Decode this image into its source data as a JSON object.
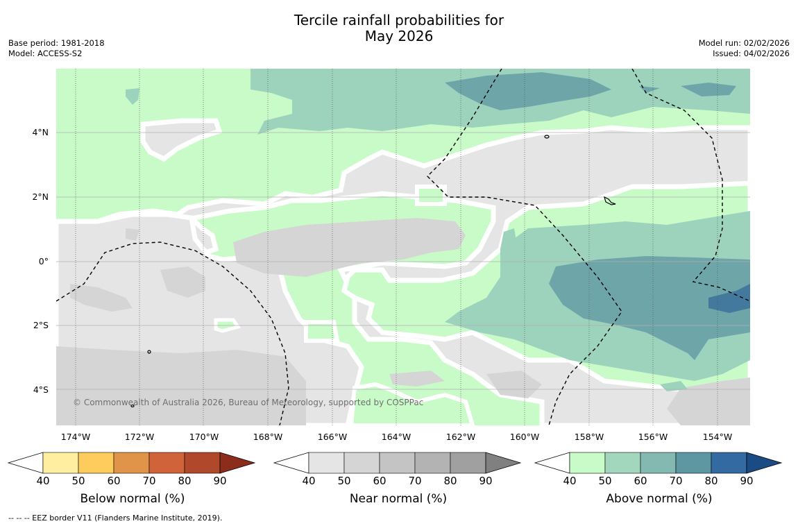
{
  "title_line1": "Tercile rainfall probabilities for",
  "title_line2": "May 2026",
  "base_period": "Base period: 1981-2018",
  "model": "Model: ACCESS-S2",
  "model_run": "Model run: 02/02/2026",
  "issued": "Issued: 04/02/2026",
  "copyright": "© Commonwealth of Australia 2026, Bureau of Meteorology, supported by COSPPac",
  "footnote": "--  --  -- EEZ border V11 (Flanders Marine Institute, 2019).",
  "lat_labels": [
    "4°N",
    "2°N",
    "0°",
    "2°S",
    "4°S"
  ],
  "lon_labels": [
    "174°W",
    "172°W",
    "170°W",
    "168°W",
    "166°W",
    "164°W",
    "162°W",
    "160°W",
    "158°W",
    "156°W",
    "154°W"
  ],
  "legends": {
    "below": {
      "title": "Below normal (%)",
      "ticks": [
        "40",
        "50",
        "60",
        "70",
        "80",
        "90"
      ],
      "colors": [
        "#ffeda0",
        "#fecc5c",
        "#e0944a",
        "#d0633a",
        "#b0492c",
        "#8c2d1c"
      ]
    },
    "near": {
      "title": "Near normal (%)",
      "ticks": [
        "40",
        "50",
        "60",
        "70",
        "80",
        "90"
      ],
      "colors": [
        "#e5e5e5",
        "#d5d5d5",
        "#c4c4c4",
        "#b3b3b3",
        "#a0a0a0",
        "#808080"
      ]
    },
    "above": {
      "title": "Above normal (%)",
      "ticks": [
        "40",
        "50",
        "60",
        "70",
        "80",
        "90"
      ],
      "colors": [
        "#c9fbc9",
        "#a2d7bd",
        "#84b9b2",
        "#5e97a2",
        "#336aa1",
        "#1a4b85"
      ]
    }
  },
  "map_colors": {
    "above_40": "#c9fbc9",
    "above_50": "#9dd3bd",
    "above_60": "#6ea5a9",
    "above_70": "#43799d",
    "near_40": "#e5e5e5",
    "near_50": "#d5d5d5",
    "gap": "#ffffff",
    "eez": "#000000"
  }
}
